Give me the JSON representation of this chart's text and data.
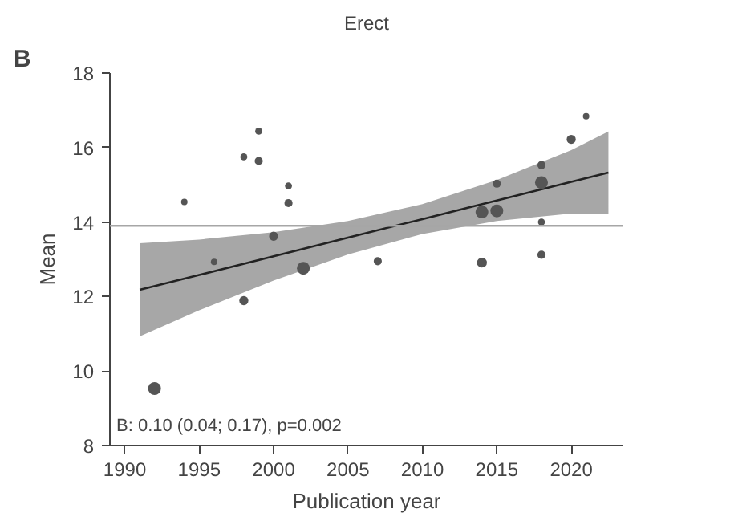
{
  "chart_data": {
    "type": "bubble",
    "title": "Erect",
    "xlabel": "Publication year",
    "ylabel": "Mean",
    "annotations": [
      "B",
      "B: 0.10 (0.04; 0.17), p=0.002"
    ],
    "xlim": [
      1989,
      2023.5
    ],
    "xticks": [
      1990,
      1995,
      2000,
      2005,
      2010,
      2015,
      2020
    ],
    "ylim": [
      8,
      18
    ],
    "yticks": [
      8,
      10,
      12,
      14,
      16,
      18
    ],
    "grid": false,
    "ref_lines": [
      {
        "axis": "y",
        "value": 13.9,
        "color": "#a6a6a6"
      }
    ],
    "series": [
      {
        "color": "#555555",
        "x": [
          1992,
          1994,
          1996,
          1998,
          1998,
          1999,
          1999,
          2000,
          2001,
          2001,
          2002,
          2007,
          2014,
          2014,
          2015,
          2015,
          2018,
          2018,
          2018,
          2018,
          2020,
          2021
        ],
        "values": [
          9.53,
          14.54,
          12.93,
          15.75,
          11.89,
          16.44,
          15.64,
          13.62,
          14.97,
          14.51,
          12.76,
          12.95,
          14.27,
          12.91,
          14.3,
          15.03,
          15.53,
          15.06,
          14.0,
          13.12,
          16.22,
          16.84
        ],
        "sizes": [
          1,
          0.25,
          0.25,
          0.3,
          0.5,
          0.3,
          0.4,
          0.5,
          0.3,
          0.4,
          1,
          0.4,
          1,
          0.6,
          1,
          0.4,
          0.4,
          1,
          0.3,
          0.4,
          0.5,
          0.25
        ]
      },
      {
        "type": "line",
        "color": "#222222",
        "x": [
          1991,
          1995,
          2000,
          2005,
          2010,
          2015,
          2020,
          2022.5
        ],
        "values": [
          12.18,
          12.58,
          13.08,
          13.58,
          14.08,
          14.58,
          15.08,
          15.33
        ],
        "lower": [
          10.93,
          11.63,
          12.43,
          13.13,
          13.68,
          14.03,
          14.23,
          14.23
        ],
        "upper": [
          13.43,
          13.53,
          13.73,
          14.03,
          14.48,
          15.13,
          15.93,
          16.43
        ]
      }
    ]
  }
}
